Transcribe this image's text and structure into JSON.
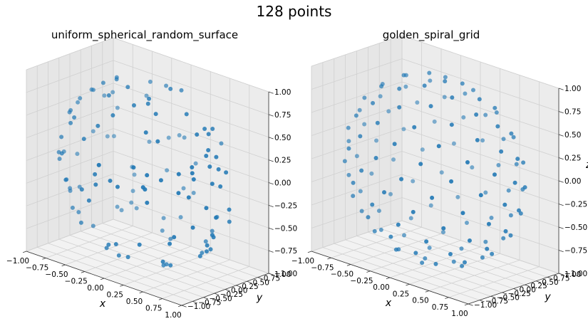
{
  "figure": {
    "title": "128 points"
  },
  "chart_data": [
    {
      "type": "scatter",
      "projection": "3d",
      "title": "uniform_spherical_random_surface",
      "xlabel": "x",
      "ylabel": "y",
      "zlabel": "",
      "xlim": [
        -1.0,
        1.0
      ],
      "ylim": [
        -1.0,
        1.0
      ],
      "zlim": [
        -1.0,
        1.0
      ],
      "xticks": [
        "−1.00",
        "−0.75",
        "−0.50",
        "−0.25",
        "0.00",
        "0.25",
        "0.50",
        "0.75",
        "1.00"
      ],
      "yticks": [
        "−1.00",
        "−0.75",
        "−0.50",
        "−0.25",
        "0.00",
        "0.25",
        "0.50",
        "0.75",
        "1.00"
      ],
      "zticks": [
        "−1.00",
        "−0.75",
        "−0.50",
        "−0.25",
        "0.00",
        "0.25",
        "0.50",
        "0.75",
        "1.00"
      ],
      "grid": true,
      "color": "#1f77b4",
      "points": {
        "n": 128,
        "generator": "random",
        "seed": 7
      }
    },
    {
      "type": "scatter",
      "projection": "3d",
      "title": "golden_spiral_grid",
      "xlabel": "x",
      "ylabel": "y",
      "zlabel": "z",
      "xlim": [
        -1.0,
        1.0
      ],
      "ylim": [
        -1.0,
        1.0
      ],
      "zlim": [
        -1.0,
        1.0
      ],
      "xticks": [
        "−1.00",
        "−0.75",
        "−0.50",
        "−0.25",
        "0.00",
        "0.25",
        "0.50",
        "0.75",
        "1.00"
      ],
      "yticks": [
        "−1.00",
        "−0.75",
        "−0.50",
        "−0.25",
        "0.00",
        "0.25",
        "0.50",
        "0.75",
        "1.00"
      ],
      "zticks": [
        "−1.00",
        "−0.75",
        "−0.50",
        "−0.25",
        "0.00",
        "0.25",
        "0.50",
        "0.75",
        "1.00"
      ],
      "grid": true,
      "color": "#1f77b4",
      "points": {
        "n": 128,
        "generator": "golden_spiral"
      }
    }
  ]
}
